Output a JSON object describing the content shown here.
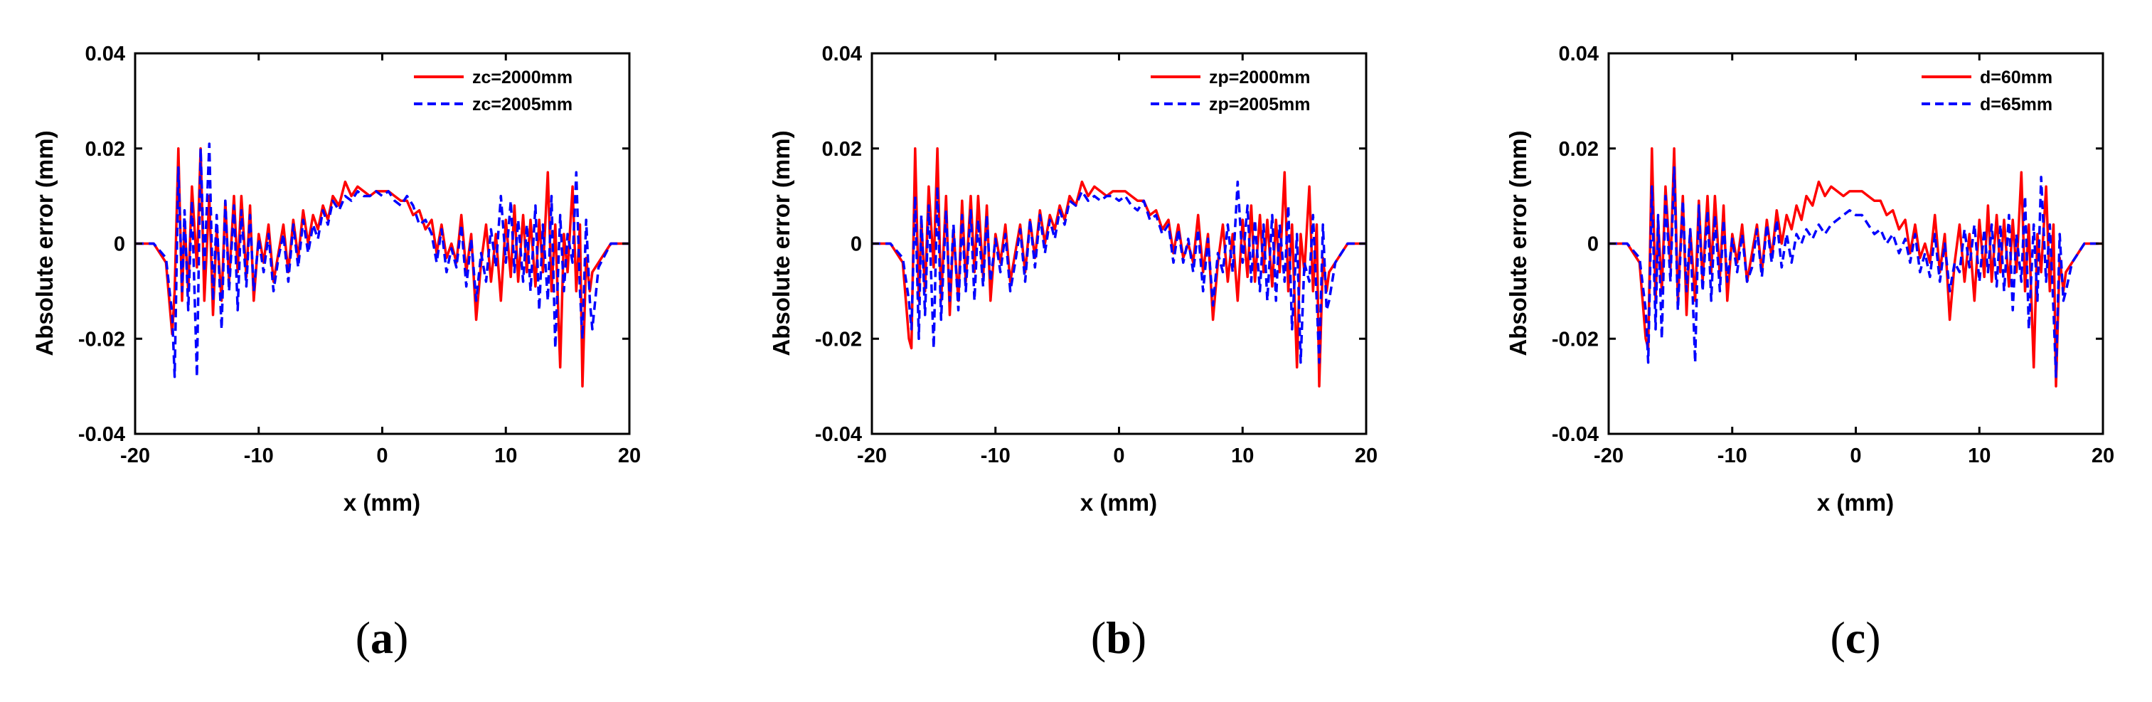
{
  "panels": [
    {
      "label_open": "(",
      "letter": "a",
      "label_close": ")"
    },
    {
      "label_open": "(",
      "letter": "b",
      "label_close": ")"
    },
    {
      "label_open": "(",
      "letter": "c",
      "label_close": ")"
    }
  ],
  "colors": {
    "series1": "#ff0000",
    "series2": "#0000ff"
  },
  "chart_data": [
    {
      "type": "line",
      "title": "",
      "xlabel": "x (mm)",
      "ylabel": "Absolute error (mm)",
      "xlim": [
        -20,
        20
      ],
      "ylim": [
        -0.04,
        0.04
      ],
      "xticks": [
        -20,
        -10,
        0,
        10,
        20
      ],
      "xticklabels": [
        "-20",
        "-10",
        "0",
        "10",
        "20"
      ],
      "yticks": [
        -0.04,
        -0.02,
        0,
        0.02,
        0.04
      ],
      "yticklabels": [
        "-0.04",
        "-0.02",
        "0",
        "0.02",
        "0.04"
      ],
      "legend_position": "top-right",
      "x": [
        -20,
        -18.5,
        -17.5,
        -17,
        -16.8,
        -16.5,
        -16.2,
        -16,
        -15.7,
        -15.4,
        -15,
        -14.7,
        -14.4,
        -14,
        -13.7,
        -13.4,
        -13,
        -12.7,
        -12.4,
        -12,
        -11.7,
        -11.4,
        -11,
        -10.7,
        -10.4,
        -10,
        -9.6,
        -9.2,
        -8.8,
        -8.4,
        -8,
        -7.6,
        -7.2,
        -6.8,
        -6.4,
        -6,
        -5.6,
        -5.2,
        -4.8,
        -4.4,
        -4,
        -3.5,
        -3,
        -2.5,
        -2,
        -1.5,
        -1,
        -0.5,
        0,
        0.5,
        1,
        1.5,
        2,
        2.5,
        3,
        3.5,
        4,
        4.4,
        4.8,
        5.2,
        5.6,
        6,
        6.4,
        6.8,
        7.2,
        7.6,
        8,
        8.4,
        8.8,
        9.2,
        9.6,
        10,
        10.4,
        10.7,
        11,
        11.4,
        11.7,
        12,
        12.4,
        12.7,
        13,
        13.4,
        13.7,
        14,
        14.4,
        14.7,
        15,
        15.4,
        15.7,
        16,
        16.2,
        16.5,
        16.8,
        17,
        17.5,
        18.5,
        20
      ],
      "series": [
        {
          "name": "zc=2000mm",
          "style": "solid",
          "values": [
            0,
            0,
            -0.004,
            -0.019,
            -0.01,
            0.02,
            -0.012,
            0.005,
            -0.01,
            0.012,
            -0.005,
            0.02,
            -0.012,
            0.01,
            -0.015,
            0.003,
            -0.012,
            0.009,
            -0.008,
            0.01,
            -0.006,
            0.01,
            -0.007,
            0.008,
            -0.012,
            0.002,
            -0.004,
            0.004,
            -0.008,
            -0.002,
            0.004,
            -0.006,
            0.005,
            -0.003,
            0.007,
            0,
            0.006,
            0.003,
            0.008,
            0.005,
            0.01,
            0.008,
            0.013,
            0.01,
            0.012,
            0.011,
            0.01,
            0.011,
            0.011,
            0.011,
            0.01,
            0.009,
            0.009,
            0.006,
            0.007,
            0.003,
            0.005,
            -0.002,
            0.004,
            -0.003,
            0,
            -0.004,
            0.006,
            -0.006,
            0.002,
            -0.016,
            -0.004,
            0.004,
            -0.008,
            0.002,
            -0.012,
            0.005,
            -0.007,
            0.008,
            -0.008,
            0.006,
            -0.006,
            0.005,
            -0.009,
            0.005,
            -0.006,
            0.015,
            -0.01,
            0.004,
            -0.026,
            0.002,
            -0.006,
            0.012,
            -0.01,
            0.004,
            -0.03,
            -0.003,
            -0.01,
            -0.006,
            -0.004,
            0,
            0
          ]
        },
        {
          "name": "zc=2005mm",
          "style": "dashed",
          "values": [
            0,
            0,
            -0.003,
            -0.015,
            -0.028,
            0.016,
            -0.01,
            0.007,
            -0.014,
            0.009,
            -0.028,
            0.02,
            -0.006,
            0.021,
            -0.012,
            0.006,
            -0.018,
            0.009,
            -0.01,
            0.008,
            -0.014,
            0.007,
            -0.009,
            0.006,
            -0.01,
            0.001,
            -0.006,
            0.002,
            -0.01,
            -0.003,
            0.002,
            -0.008,
            0.004,
            -0.005,
            0.005,
            -0.002,
            0.004,
            0.001,
            0.007,
            0.004,
            0.009,
            0.007,
            0.01,
            0.009,
            0.011,
            0.01,
            0.01,
            0.011,
            0.01,
            0.011,
            0.009,
            0.008,
            0.01,
            0.008,
            0.004,
            0.005,
            0.002,
            -0.004,
            0.003,
            -0.006,
            -0.001,
            -0.005,
            0.004,
            -0.009,
            0.001,
            -0.012,
            -0.002,
            -0.008,
            0.003,
            -0.005,
            0.01,
            -0.004,
            0.009,
            -0.006,
            0.005,
            -0.008,
            0.004,
            -0.01,
            0.008,
            -0.014,
            0.004,
            -0.012,
            0.01,
            -0.022,
            0.006,
            -0.01,
            0.002,
            -0.004,
            0.015,
            -0.01,
            -0.02,
            0.005,
            -0.012,
            -0.018,
            -0.005,
            0,
            0
          ]
        }
      ]
    },
    {
      "type": "line",
      "title": "",
      "xlabel": "x (mm)",
      "ylabel": "Absolute error (mm)",
      "xlim": [
        -20,
        20
      ],
      "ylim": [
        -0.04,
        0.04
      ],
      "xticks": [
        -20,
        -10,
        0,
        10,
        20
      ],
      "xticklabels": [
        "-20",
        "-10",
        "0",
        "10",
        "20"
      ],
      "yticks": [
        -0.04,
        -0.02,
        0,
        0.02,
        0.04
      ],
      "yticklabels": [
        "-0.04",
        "-0.02",
        "0",
        "0.02",
        "0.04"
      ],
      "legend_position": "top-right",
      "x": [
        -20,
        -18.5,
        -17.5,
        -17,
        -16.8,
        -16.5,
        -16.2,
        -16,
        -15.7,
        -15.4,
        -15,
        -14.7,
        -14.4,
        -14,
        -13.7,
        -13.4,
        -13,
        -12.7,
        -12.4,
        -12,
        -11.7,
        -11.4,
        -11,
        -10.7,
        -10.4,
        -10,
        -9.6,
        -9.2,
        -8.8,
        -8.4,
        -8,
        -7.6,
        -7.2,
        -6.8,
        -6.4,
        -6,
        -5.6,
        -5.2,
        -4.8,
        -4.4,
        -4,
        -3.5,
        -3,
        -2.5,
        -2,
        -1.5,
        -1,
        -0.5,
        0,
        0.5,
        1,
        1.5,
        2,
        2.5,
        3,
        3.5,
        4,
        4.4,
        4.8,
        5.2,
        5.6,
        6,
        6.4,
        6.8,
        7.2,
        7.6,
        8,
        8.4,
        8.8,
        9.2,
        9.6,
        10,
        10.4,
        10.7,
        11,
        11.4,
        11.7,
        12,
        12.4,
        12.7,
        13,
        13.4,
        13.7,
        14,
        14.4,
        14.7,
        15,
        15.4,
        15.7,
        16,
        16.2,
        16.5,
        16.8,
        17,
        17.5,
        18.5,
        20
      ],
      "series": [
        {
          "name": "zp=2000mm",
          "style": "solid",
          "values": [
            0,
            0,
            -0.004,
            -0.02,
            -0.022,
            0.02,
            -0.012,
            0.005,
            -0.01,
            0.012,
            -0.005,
            0.02,
            -0.012,
            0.01,
            -0.015,
            0.003,
            -0.012,
            0.009,
            -0.008,
            0.01,
            -0.006,
            0.01,
            -0.007,
            0.008,
            -0.012,
            0.002,
            -0.004,
            0.004,
            -0.008,
            -0.002,
            0.004,
            -0.006,
            0.005,
            -0.003,
            0.007,
            0,
            0.006,
            0.003,
            0.008,
            0.005,
            0.01,
            0.008,
            0.013,
            0.01,
            0.012,
            0.011,
            0.01,
            0.011,
            0.011,
            0.011,
            0.01,
            0.009,
            0.009,
            0.006,
            0.007,
            0.003,
            0.005,
            -0.002,
            0.004,
            -0.003,
            0,
            -0.004,
            0.006,
            -0.006,
            0.002,
            -0.016,
            -0.004,
            0.004,
            -0.008,
            0.002,
            -0.012,
            0.005,
            -0.007,
            0.008,
            -0.008,
            0.006,
            -0.006,
            0.005,
            -0.009,
            0.005,
            -0.006,
            0.015,
            -0.01,
            0.004,
            -0.026,
            0.002,
            -0.006,
            0.012,
            -0.01,
            0.004,
            -0.03,
            -0.003,
            -0.01,
            -0.006,
            -0.004,
            0,
            0
          ]
        },
        {
          "name": "zp=2005mm",
          "style": "dashed",
          "values": [
            0,
            0,
            -0.003,
            -0.012,
            -0.018,
            0.01,
            -0.02,
            0.006,
            -0.015,
            0.008,
            -0.022,
            0.012,
            -0.016,
            0.007,
            -0.012,
            0.004,
            -0.014,
            0.006,
            -0.01,
            0.007,
            -0.012,
            0.005,
            -0.009,
            0.006,
            -0.008,
            0.001,
            -0.006,
            0.002,
            -0.01,
            -0.004,
            0.003,
            -0.008,
            0.005,
            -0.005,
            0.006,
            -0.002,
            0.005,
            0.001,
            0.007,
            0.004,
            0.009,
            0.008,
            0.011,
            0.009,
            0.01,
            0.009,
            0.01,
            0.01,
            0.009,
            0.01,
            0.008,
            0.007,
            0.009,
            0.005,
            0.006,
            0.002,
            0.004,
            -0.004,
            0.003,
            -0.004,
            0.001,
            -0.006,
            0.003,
            -0.01,
            0.001,
            -0.013,
            -0.002,
            -0.006,
            0.004,
            -0.006,
            0.013,
            -0.004,
            0.008,
            -0.008,
            0.005,
            -0.01,
            0.004,
            -0.012,
            0.006,
            -0.012,
            0.004,
            -0.008,
            0.008,
            -0.018,
            0.002,
            -0.025,
            -0.004,
            -0.008,
            0.006,
            -0.012,
            -0.025,
            0.004,
            -0.014,
            -0.012,
            -0.004,
            0,
            0
          ]
        }
      ]
    },
    {
      "type": "line",
      "title": "",
      "xlabel": "x (mm)",
      "ylabel": "Absolute error (mm)",
      "xlim": [
        -20,
        20
      ],
      "ylim": [
        -0.04,
        0.04
      ],
      "xticks": [
        -20,
        -10,
        0,
        10,
        20
      ],
      "xticklabels": [
        "-20",
        "-10",
        "0",
        "10",
        "20"
      ],
      "yticks": [
        -0.04,
        -0.02,
        0,
        0.02,
        0.04
      ],
      "yticklabels": [
        "-0.04",
        "-0.02",
        "0",
        "0.02",
        "0.04"
      ],
      "legend_position": "top-right",
      "x": [
        -20,
        -18.5,
        -17.5,
        -17,
        -16.8,
        -16.5,
        -16.2,
        -16,
        -15.7,
        -15.4,
        -15,
        -14.7,
        -14.4,
        -14,
        -13.7,
        -13.4,
        -13,
        -12.7,
        -12.4,
        -12,
        -11.7,
        -11.4,
        -11,
        -10.7,
        -10.4,
        -10,
        -9.6,
        -9.2,
        -8.8,
        -8.4,
        -8,
        -7.6,
        -7.2,
        -6.8,
        -6.4,
        -6,
        -5.6,
        -5.2,
        -4.8,
        -4.4,
        -4,
        -3.5,
        -3,
        -2.5,
        -2,
        -1.5,
        -1,
        -0.5,
        0,
        0.5,
        1,
        1.5,
        2,
        2.5,
        3,
        3.5,
        4,
        4.4,
        4.8,
        5.2,
        5.6,
        6,
        6.4,
        6.8,
        7.2,
        7.6,
        8,
        8.4,
        8.8,
        9.2,
        9.6,
        10,
        10.4,
        10.7,
        11,
        11.4,
        11.7,
        12,
        12.4,
        12.7,
        13,
        13.4,
        13.7,
        14,
        14.4,
        14.7,
        15,
        15.4,
        15.7,
        16,
        16.2,
        16.5,
        16.8,
        17,
        17.5,
        18.5,
        20
      ],
      "series": [
        {
          "name": "d=60mm",
          "style": "solid",
          "values": [
            0,
            0,
            -0.004,
            -0.02,
            -0.022,
            0.02,
            -0.012,
            0.005,
            -0.01,
            0.012,
            -0.005,
            0.02,
            -0.012,
            0.01,
            -0.015,
            0.003,
            -0.012,
            0.009,
            -0.008,
            0.01,
            -0.006,
            0.01,
            -0.007,
            0.008,
            -0.012,
            0.002,
            -0.004,
            0.004,
            -0.008,
            -0.002,
            0.004,
            -0.006,
            0.005,
            -0.003,
            0.007,
            0,
            0.006,
            0.003,
            0.008,
            0.005,
            0.01,
            0.008,
            0.013,
            0.01,
            0.012,
            0.011,
            0.01,
            0.011,
            0.011,
            0.011,
            0.01,
            0.009,
            0.009,
            0.006,
            0.007,
            0.003,
            0.005,
            -0.002,
            0.004,
            -0.003,
            0,
            -0.004,
            0.006,
            -0.006,
            0.002,
            -0.016,
            -0.004,
            0.004,
            -0.008,
            0.002,
            -0.012,
            0.005,
            -0.007,
            0.008,
            -0.008,
            0.006,
            -0.006,
            0.005,
            -0.009,
            0.005,
            -0.006,
            0.015,
            -0.01,
            0.004,
            -0.026,
            0.002,
            -0.006,
            0.012,
            -0.01,
            0.004,
            -0.03,
            -0.003,
            -0.01,
            -0.006,
            -0.004,
            0,
            0
          ]
        },
        {
          "name": "d=65mm",
          "style": "dashed",
          "values": [
            0,
            0,
            -0.003,
            -0.014,
            -0.025,
            0.012,
            -0.018,
            0.006,
            -0.02,
            0.01,
            -0.008,
            0.016,
            -0.014,
            0.009,
            -0.01,
            0.003,
            -0.025,
            0.008,
            -0.01,
            0.007,
            -0.012,
            0.006,
            -0.01,
            0.005,
            -0.008,
            0.001,
            -0.006,
            0.002,
            -0.008,
            -0.005,
            0.003,
            -0.007,
            0.004,
            -0.004,
            0.005,
            -0.005,
            0.002,
            -0.004,
            0.002,
            0,
            0.003,
            0.001,
            0.004,
            0.002,
            0.004,
            0.005,
            0.006,
            0.007,
            0.006,
            0.006,
            0.004,
            0.002,
            0.003,
            0,
            0.002,
            -0.002,
            0.001,
            -0.004,
            0.002,
            -0.006,
            -0.002,
            -0.007,
            0.002,
            -0.008,
            0,
            -0.01,
            -0.004,
            -0.006,
            0.003,
            -0.005,
            0.004,
            -0.008,
            0.003,
            -0.006,
            0.004,
            -0.009,
            0.004,
            -0.01,
            0.006,
            -0.014,
            0.002,
            -0.008,
            0.01,
            -0.018,
            0.004,
            -0.012,
            0.014,
            -0.008,
            0.004,
            -0.014,
            -0.028,
            0.002,
            -0.012,
            -0.01,
            -0.004,
            0,
            0
          ]
        }
      ]
    }
  ]
}
